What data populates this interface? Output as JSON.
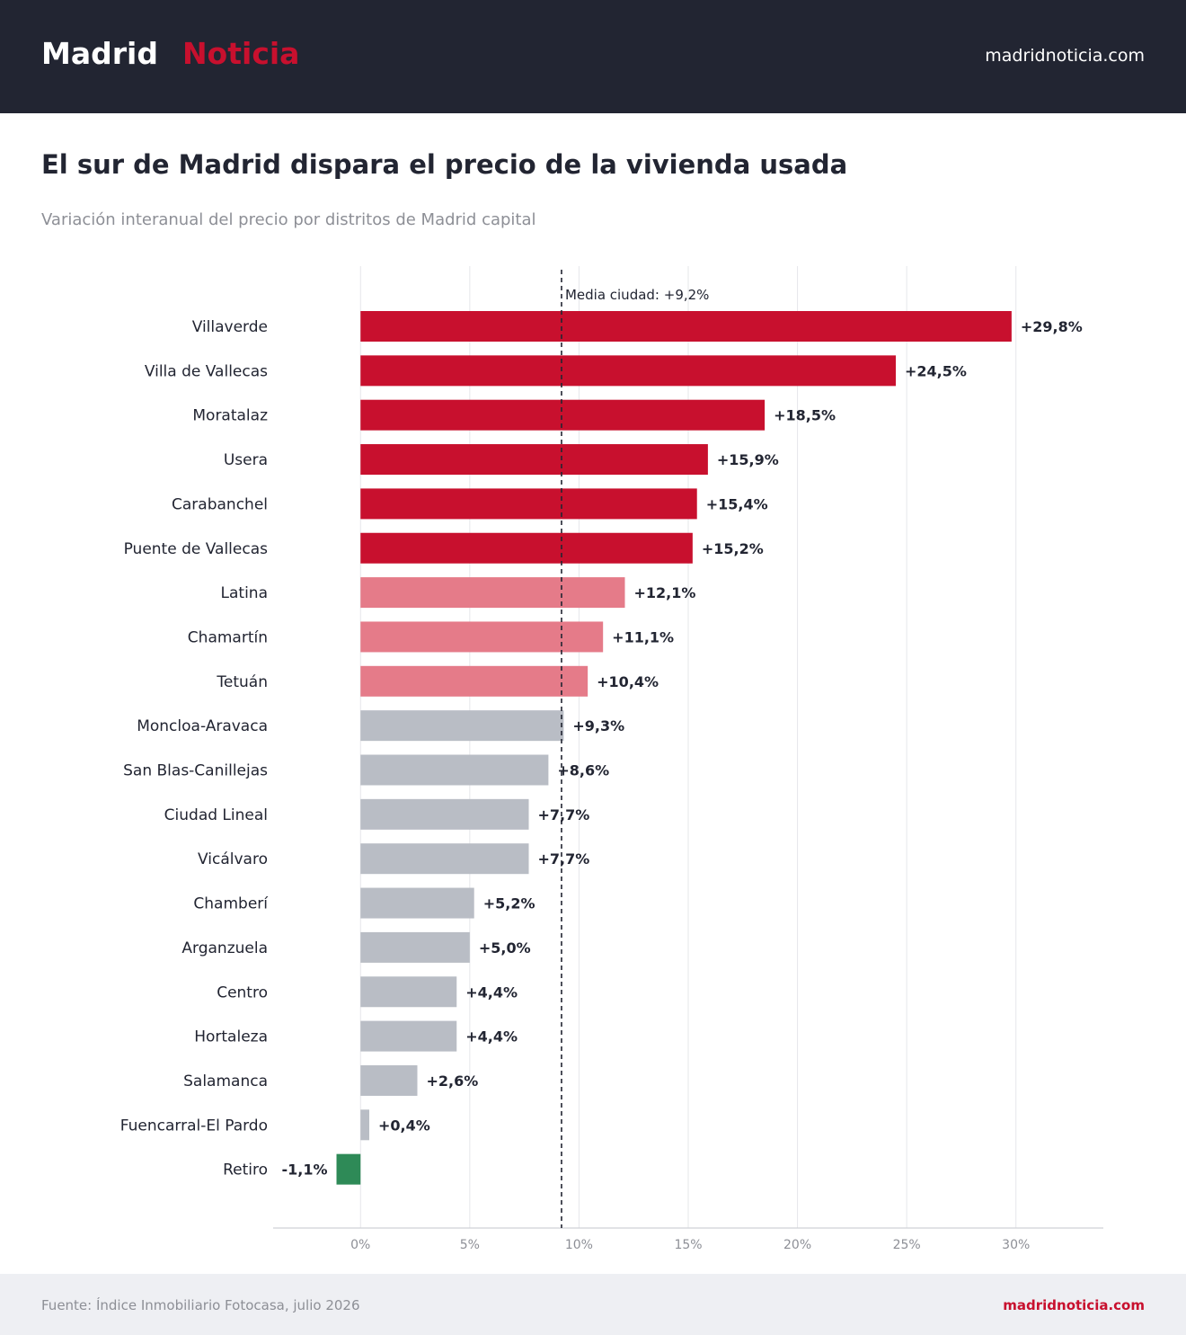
{
  "header": {
    "brand_primary": "Madrid",
    "brand_secondary": "Noticia",
    "site": "madridnoticia.com"
  },
  "title": "El sur de Madrid dispara el precio de la vivienda usada",
  "subtitle": "Variación interanual del precio por distritos de Madrid capital",
  "footer": {
    "source": "Fuente: Índice Inmobiliario Fotocasa, julio 2026",
    "site": "madridnoticia.com"
  },
  "colors": {
    "header_bg": "#222532",
    "brand_accent": "#c8102e",
    "high": "#c8102e",
    "medium": "#e57b89",
    "low": "#b9bdc5",
    "negative": "#2e8a57",
    "text": "#222532",
    "muted": "#8d8f96"
  },
  "chart_data": {
    "type": "bar",
    "orientation": "horizontal",
    "categories": [
      "Villaverde",
      "Villa de Vallecas",
      "Moratalaz",
      "Usera",
      "Carabanchel",
      "Puente de Vallecas",
      "Latina",
      "Chamartín",
      "Tetuán",
      "Moncloa-Aravaca",
      "San Blas-Canillejas",
      "Ciudad Lineal",
      "Vicálvaro",
      "Chamberí",
      "Arganzuela",
      "Centro",
      "Hortaleza",
      "Salamanca",
      "Fuencarral-El Pardo",
      "Retiro"
    ],
    "values": [
      29.8,
      24.5,
      18.5,
      15.9,
      15.4,
      15.2,
      12.1,
      11.1,
      10.4,
      9.3,
      8.6,
      7.7,
      7.7,
      5.2,
      5.0,
      4.4,
      4.4,
      2.6,
      0.4,
      -1.1
    ],
    "value_labels": [
      "+29,8%",
      "+24,5%",
      "+18,5%",
      "+15,9%",
      "+15,4%",
      "+15,2%",
      "+12,1%",
      "+11,1%",
      "+10,4%",
      "+9,3%",
      "+8,6%",
      "+7,7%",
      "+7,7%",
      "+5,2%",
      "+5,0%",
      "+4,4%",
      "+4,4%",
      "+2,6%",
      "+0,4%",
      "-1,1%"
    ],
    "xlim": [
      -4,
      34
    ],
    "xticks": [
      0,
      5,
      10,
      15,
      20,
      25,
      30
    ],
    "xtick_labels": [
      "0%",
      "5%",
      "10%",
      "15%",
      "20%",
      "25%",
      "30%"
    ],
    "reference_line": {
      "value": 9.2,
      "label": "Media ciudad: +9,2%"
    },
    "grid": "vertical",
    "legend": "none"
  }
}
